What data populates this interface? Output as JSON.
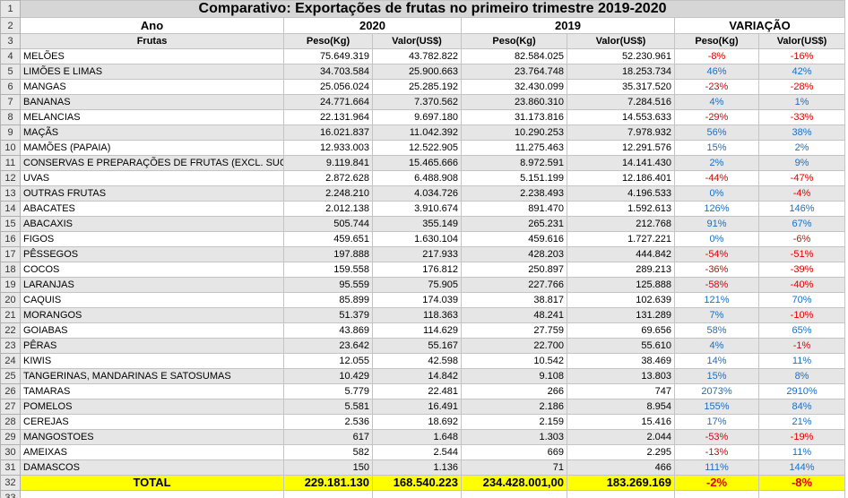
{
  "title": "Comparativo: Exportações de frutas no primeiro trimestre 2019-2020",
  "row_numbers": [
    1,
    2,
    3,
    4,
    5,
    6,
    7,
    8,
    9,
    10,
    11,
    12,
    13,
    14,
    15,
    16,
    17,
    18,
    19,
    20,
    21,
    22,
    23,
    24,
    25,
    26,
    27,
    28,
    29,
    30,
    31,
    32,
    33
  ],
  "header_row": {
    "label": "Ano",
    "groups": [
      "2020",
      "2019",
      "VARIAÇÃO"
    ]
  },
  "subheader_row": [
    "Frutas",
    "Peso(Kg)",
    "Valor(US$)",
    "Peso(Kg)",
    "Valor(US$)",
    "Peso(Kg)",
    "Valor(US$)"
  ],
  "rows": [
    [
      "MELÕES",
      "75.649.319",
      "43.782.822",
      "82.584.025",
      "52.230.961",
      "-8%",
      "-16%"
    ],
    [
      "LIMÕES E LIMAS",
      "34.703.584",
      "25.900.663",
      "23.764.748",
      "18.253.734",
      "46%",
      "42%"
    ],
    [
      "MANGAS",
      "25.056.024",
      "25.285.192",
      "32.430.099",
      "35.317.520",
      "-23%",
      "-28%"
    ],
    [
      "BANANAS",
      "24.771.664",
      "7.370.562",
      "23.860.310",
      "7.284.516",
      "4%",
      "1%"
    ],
    [
      "MELANCIAS",
      "22.131.964",
      "9.697.180",
      "31.173.816",
      "14.553.633",
      "-29%",
      "-33%"
    ],
    [
      "MAÇÃS",
      "16.021.837",
      "11.042.392",
      "10.290.253",
      "7.978.932",
      "56%",
      "38%"
    ],
    [
      "MAMÕES (PAPAIA)",
      "12.933.003",
      "12.522.905",
      "11.275.463",
      "12.291.576",
      "15%",
      "2%"
    ],
    [
      "CONSERVAS E PREPARAÇÕES DE FRUTAS (EXCL. SUCOS)",
      "9.119.841",
      "15.465.666",
      "8.972.591",
      "14.141.430",
      "2%",
      "9%"
    ],
    [
      "UVAS",
      "2.872.628",
      "6.488.908",
      "5.151.199",
      "12.186.401",
      "-44%",
      "-47%"
    ],
    [
      "OUTRAS FRUTAS",
      "2.248.210",
      "4.034.726",
      "2.238.493",
      "4.196.533",
      "0%",
      "-4%"
    ],
    [
      "ABACATES",
      "2.012.138",
      "3.910.674",
      "891.470",
      "1.592.613",
      "126%",
      "146%"
    ],
    [
      "ABACAXIS",
      "505.744",
      "355.149",
      "265.231",
      "212.768",
      "91%",
      "67%"
    ],
    [
      "FIGOS",
      "459.651",
      "1.630.104",
      "459.616",
      "1.727.221",
      "0%",
      "-6%"
    ],
    [
      "PÊSSEGOS",
      "197.888",
      "217.933",
      "428.203",
      "444.842",
      "-54%",
      "-51%"
    ],
    [
      "COCOS",
      "159.558",
      "176.812",
      "250.897",
      "289.213",
      "-36%",
      "-39%"
    ],
    [
      "LARANJAS",
      "95.559",
      "75.905",
      "227.766",
      "125.888",
      "-58%",
      "-40%"
    ],
    [
      "CAQUIS",
      "85.899",
      "174.039",
      "38.817",
      "102.639",
      "121%",
      "70%"
    ],
    [
      "MORANGOS",
      "51.379",
      "118.363",
      "48.241",
      "131.289",
      "7%",
      "-10%"
    ],
    [
      "GOIABAS",
      "43.869",
      "114.629",
      "27.759",
      "69.656",
      "58%",
      "65%"
    ],
    [
      "PÊRAS",
      "23.642",
      "55.167",
      "22.700",
      "55.610",
      "4%",
      "-1%"
    ],
    [
      "KIWIS",
      "12.055",
      "42.598",
      "10.542",
      "38.469",
      "14%",
      "11%"
    ],
    [
      "TANGERINAS, MANDARINAS E SATOSUMAS",
      "10.429",
      "14.842",
      "9.108",
      "13.803",
      "15%",
      "8%"
    ],
    [
      "TAMARAS",
      "5.779",
      "22.481",
      "266",
      "747",
      "2073%",
      "2910%"
    ],
    [
      "POMELOS",
      "5.581",
      "16.491",
      "2.186",
      "8.954",
      "155%",
      "84%"
    ],
    [
      "CEREJAS",
      "2.536",
      "18.692",
      "2.159",
      "15.416",
      "17%",
      "21%"
    ],
    [
      "MANGOSTOES",
      "617",
      "1.648",
      "1.303",
      "2.044",
      "-53%",
      "-19%"
    ],
    [
      "AMEIXAS",
      "582",
      "2.544",
      "669",
      "2.295",
      "-13%",
      "11%"
    ],
    [
      "DAMASCOS",
      "150",
      "1.136",
      "71",
      "466",
      "111%",
      "144%"
    ]
  ],
  "total": [
    "TOTAL",
    "229.181.130",
    "168.540.223",
    "234.428.001,00",
    "183.269.169",
    "-2%",
    "-8%"
  ]
}
